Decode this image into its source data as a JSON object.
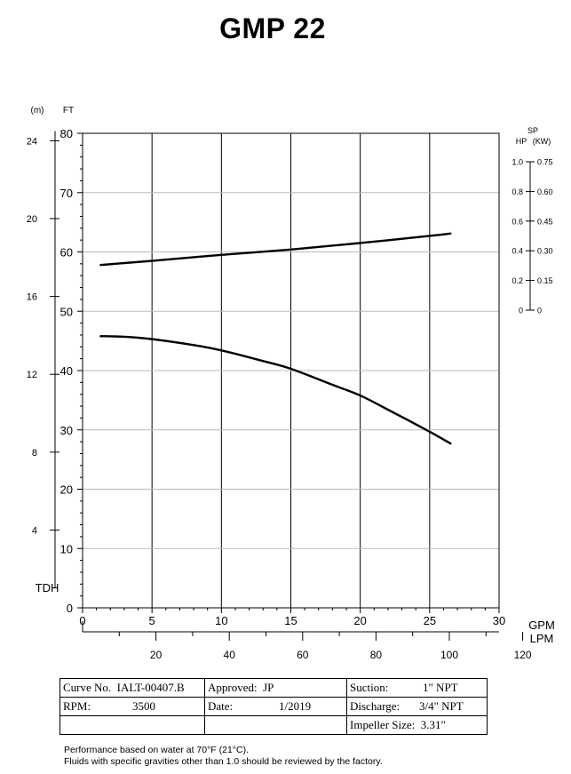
{
  "chart_data": {
    "type": "line",
    "title": "GMP 22",
    "x_axis": {
      "label": "GPM",
      "range": [
        0,
        30
      ],
      "ticks": [
        0,
        5,
        10,
        15,
        20,
        25,
        30
      ]
    },
    "x2_axis": {
      "label": "LPM",
      "ticks": [
        20,
        40,
        60,
        80,
        100,
        120
      ]
    },
    "y_axis": {
      "label": "TDH",
      "unit": "FT",
      "range": [
        0,
        80
      ],
      "ticks": [
        0,
        10,
        20,
        30,
        40,
        50,
        60,
        70,
        80
      ]
    },
    "y_axis_metric": {
      "unit": "(m)",
      "ticks": [
        4,
        8,
        12,
        16,
        20,
        24
      ]
    },
    "y_axis_right": {
      "label_top": "SP",
      "label": "HP",
      "unit": "(KW)",
      "hp_ticks": [
        "0",
        "0.2",
        "0.4",
        "0.6",
        "0.8",
        "1.0"
      ],
      "kw_ticks": [
        "0",
        "0.15",
        "0.30",
        "0.45",
        "0.60",
        "0.75"
      ]
    },
    "grid": true,
    "series": [
      {
        "x": [
          1.3,
          5,
          10,
          15,
          20,
          25,
          26.5
        ],
        "y": [
          57.8,
          58.5,
          59.5,
          60.4,
          61.5,
          62.7,
          63.1
        ]
      },
      {
        "x": [
          1.3,
          3,
          5,
          8,
          10,
          13,
          15,
          18,
          20,
          22,
          25,
          26.5
        ],
        "y": [
          45.8,
          45.7,
          45.3,
          44.3,
          43.4,
          41.6,
          40.3,
          37.6,
          35.8,
          33.4,
          29.7,
          27.7
        ]
      }
    ]
  },
  "info": {
    "curve_no_label": "Curve No.",
    "curve_no_value": "IALT-00407.B",
    "rpm_label": "RPM:",
    "rpm_value": "3500",
    "approved_label": "Approved:",
    "approved_value": "JP",
    "date_label": "Date:",
    "date_value": "1/2019",
    "suction_label": "Suction:",
    "suction_value": "1\" NPT",
    "discharge_label": "Discharge:",
    "discharge_value": "3/4\" NPT",
    "impeller_label": "Impeller Size:",
    "impeller_value": "3.31\""
  },
  "notes": {
    "line1": "Performance based on water at 70°F (21°C).",
    "line2": "Fluids with specific gravities other than 1.0 should be reviewed by the factory."
  }
}
